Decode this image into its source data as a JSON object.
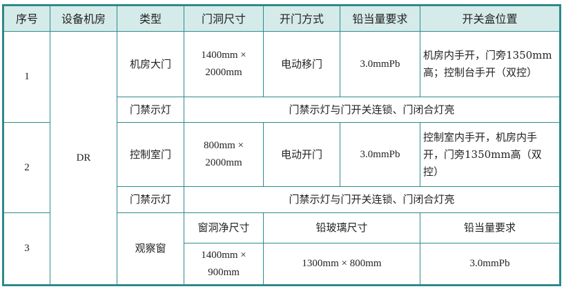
{
  "header": [
    "序号",
    "设备机房",
    "类型",
    "门洞尺寸",
    "开门方式",
    "铅当量要求",
    "开关盒位置"
  ],
  "room": "DR",
  "rows": [
    {
      "no": "1",
      "type": "机房大门",
      "size_line1": "1400mm ×",
      "size_line2": "2000mm",
      "open": "电动移门",
      "lead": "3.0mmPb",
      "switch": "机房内手开，门旁1350mm高；控制台手开（双控）",
      "light_type": "门禁示灯",
      "light_desc": "门禁示灯与门开关连锁、门闭合灯亮"
    },
    {
      "no": "2",
      "type": "控制室门",
      "size_line1": "800mm ×",
      "size_line2": "2000mm",
      "open": "电动开门",
      "lead": "3.0mmPb",
      "switch": "控制室内手开，机房内手开，门旁1350mm高（双控）",
      "light_type": "门禁示灯",
      "light_desc": "门禁示灯与门开关连锁、门闭合灯亮"
    },
    {
      "no": "3",
      "type": "观察窗",
      "sub_header": [
        "窗洞净尺寸",
        "铅玻璃尺寸",
        "铅当量要求"
      ],
      "win_line1": "1400mm ×",
      "win_line2": "900mm",
      "glass": "1300mm × 800mm",
      "lead": "3.0mmPb"
    }
  ],
  "colors": {
    "border": "#2b8a8c",
    "header_bg": "#d5ebe9"
  }
}
